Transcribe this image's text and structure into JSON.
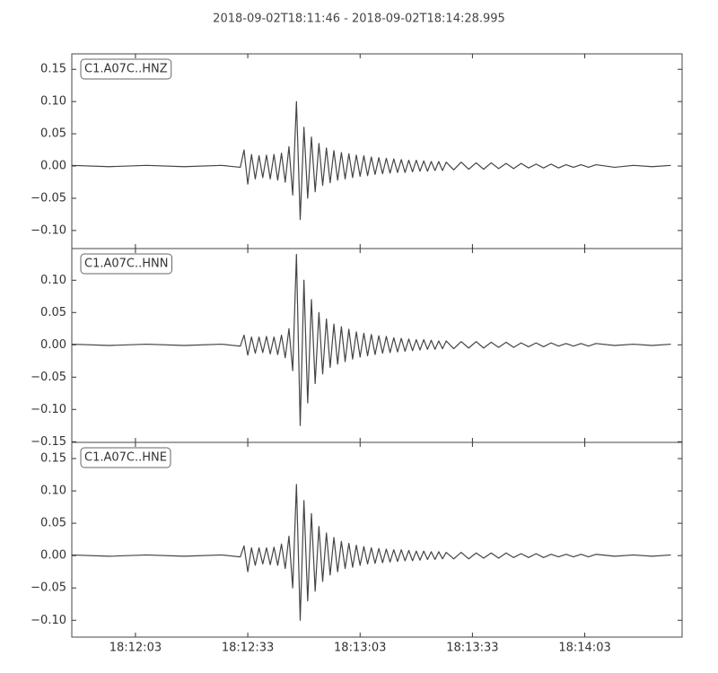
{
  "chart_data": [
    {
      "type": "line",
      "title": "2018-09-02T18:11:46  -  2018-09-02T18:14:28.995",
      "x": [
        0,
        10,
        20,
        30,
        40,
        45,
        46,
        47,
        48,
        49,
        50,
        51,
        52,
        53,
        54,
        55,
        56,
        57,
        58,
        59,
        60,
        61,
        62,
        63,
        64,
        65,
        66,
        67,
        68,
        69,
        70,
        71,
        72,
        73,
        74,
        75,
        76,
        77,
        78,
        79,
        80,
        81,
        82,
        83,
        84,
        85,
        86,
        87,
        88,
        89,
        90,
        91,
        92,
        93,
        94,
        95,
        96,
        97,
        98,
        99,
        100,
        102,
        104,
        106,
        108,
        110,
        112,
        114,
        116,
        118,
        120,
        122,
        124,
        126,
        128,
        130,
        132,
        134,
        136,
        138,
        140,
        145,
        150,
        155,
        160
      ],
      "series": [
        {
          "name": "C1.A07C..HNZ",
          "color": "#444444",
          "values": [
            0.001,
            -0.001,
            0.001,
            -0.001,
            0.001,
            -0.002,
            0.025,
            -0.028,
            0.018,
            -0.02,
            0.016,
            -0.018,
            0.017,
            -0.02,
            0.018,
            -0.022,
            0.02,
            -0.025,
            0.03,
            -0.045,
            0.1,
            -0.083,
            0.06,
            -0.05,
            0.045,
            -0.04,
            0.035,
            -0.03,
            0.028,
            -0.026,
            0.024,
            -0.022,
            0.021,
            -0.02,
            0.019,
            -0.018,
            0.017,
            -0.016,
            0.016,
            -0.015,
            0.014,
            -0.013,
            0.013,
            -0.012,
            0.012,
            -0.011,
            0.011,
            -0.01,
            0.01,
            -0.01,
            0.009,
            -0.009,
            0.009,
            -0.008,
            0.008,
            -0.008,
            0.007,
            -0.007,
            0.007,
            -0.007,
            0.006,
            -0.006,
            0.006,
            -0.005,
            0.005,
            -0.005,
            0.005,
            -0.004,
            0.004,
            -0.004,
            0.004,
            -0.003,
            0.003,
            -0.003,
            0.003,
            -0.003,
            0.002,
            -0.002,
            0.002,
            -0.002,
            0.002,
            -0.002,
            0.001,
            -0.001,
            0.001
          ]
        }
      ],
      "xlim": [
        0,
        162.995
      ],
      "ylim": [
        -0.128,
        0.174
      ],
      "yticks": [
        {
          "value": -0.1,
          "label": "−0.10"
        },
        {
          "value": -0.05,
          "label": "−0.05"
        },
        {
          "value": 0,
          "label": "0.00"
        },
        {
          "value": 0.05,
          "label": "0.05"
        },
        {
          "value": 0.1,
          "label": "0.10"
        },
        {
          "value": 0.15,
          "label": "0.15"
        }
      ]
    },
    {
      "type": "line",
      "x": [
        0,
        10,
        20,
        30,
        40,
        45,
        46,
        47,
        48,
        49,
        50,
        51,
        52,
        53,
        54,
        55,
        56,
        57,
        58,
        59,
        60,
        61,
        62,
        63,
        64,
        65,
        66,
        67,
        68,
        69,
        70,
        71,
        72,
        73,
        74,
        75,
        76,
        77,
        78,
        79,
        80,
        81,
        82,
        83,
        84,
        85,
        86,
        87,
        88,
        89,
        90,
        91,
        92,
        93,
        94,
        95,
        96,
        97,
        98,
        99,
        100,
        102,
        104,
        106,
        108,
        110,
        112,
        114,
        116,
        118,
        120,
        122,
        124,
        126,
        128,
        130,
        132,
        134,
        136,
        138,
        140,
        145,
        150,
        155,
        160
      ],
      "series": [
        {
          "name": "C1.A07C..HNN",
          "color": "#444444",
          "values": [
            0.001,
            -0.001,
            0.001,
            -0.001,
            0.001,
            -0.002,
            0.015,
            -0.016,
            0.012,
            -0.013,
            0.012,
            -0.012,
            0.013,
            -0.014,
            0.012,
            -0.015,
            0.015,
            -0.02,
            0.025,
            -0.04,
            0.14,
            -0.125,
            0.1,
            -0.09,
            0.07,
            -0.06,
            0.05,
            -0.045,
            0.04,
            -0.035,
            0.032,
            -0.03,
            0.028,
            -0.026,
            0.024,
            -0.022,
            0.02,
            -0.019,
            0.018,
            -0.017,
            0.016,
            -0.015,
            0.014,
            -0.013,
            0.013,
            -0.012,
            0.011,
            -0.011,
            0.01,
            -0.01,
            0.009,
            -0.009,
            0.008,
            -0.008,
            0.008,
            -0.007,
            0.007,
            -0.007,
            0.006,
            -0.006,
            0.006,
            -0.006,
            0.005,
            -0.005,
            0.005,
            -0.005,
            0.004,
            -0.004,
            0.004,
            -0.004,
            0.003,
            -0.003,
            0.003,
            -0.003,
            0.003,
            -0.002,
            0.002,
            -0.002,
            0.002,
            -0.002,
            0.002,
            -0.001,
            0.001,
            -0.001,
            0.001
          ]
        }
      ],
      "xlim": [
        0,
        162.995
      ],
      "ylim": [
        -0.151,
        0.149
      ],
      "yticks": [
        {
          "value": -0.15,
          "label": "−0.15"
        },
        {
          "value": -0.1,
          "label": "−0.10"
        },
        {
          "value": -0.05,
          "label": "−0.05"
        },
        {
          "value": 0,
          "label": "0.00"
        },
        {
          "value": 0.05,
          "label": "0.05"
        },
        {
          "value": 0.1,
          "label": "0.10"
        }
      ]
    },
    {
      "type": "line",
      "x": [
        0,
        10,
        20,
        30,
        40,
        45,
        46,
        47,
        48,
        49,
        50,
        51,
        52,
        53,
        54,
        55,
        56,
        57,
        58,
        59,
        60,
        61,
        62,
        63,
        64,
        65,
        66,
        67,
        68,
        69,
        70,
        71,
        72,
        73,
        74,
        75,
        76,
        77,
        78,
        79,
        80,
        81,
        82,
        83,
        84,
        85,
        86,
        87,
        88,
        89,
        90,
        91,
        92,
        93,
        94,
        95,
        96,
        97,
        98,
        99,
        100,
        102,
        104,
        106,
        108,
        110,
        112,
        114,
        116,
        118,
        120,
        122,
        124,
        126,
        128,
        130,
        132,
        134,
        136,
        138,
        140,
        145,
        150,
        155,
        160
      ],
      "series": [
        {
          "name": "C1.A07C..HNE",
          "color": "#444444",
          "values": [
            0.001,
            -0.001,
            0.001,
            -0.001,
            0.001,
            -0.002,
            0.015,
            -0.025,
            0.012,
            -0.015,
            0.012,
            -0.013,
            0.012,
            -0.014,
            0.013,
            -0.015,
            0.018,
            -0.02,
            0.03,
            -0.05,
            0.11,
            -0.1,
            0.085,
            -0.07,
            0.065,
            -0.055,
            0.045,
            -0.04,
            0.035,
            -0.03,
            0.028,
            -0.025,
            0.022,
            -0.02,
            0.019,
            -0.018,
            0.016,
            -0.015,
            0.014,
            -0.013,
            0.012,
            -0.012,
            0.011,
            -0.011,
            0.01,
            -0.01,
            0.009,
            -0.009,
            0.009,
            -0.008,
            0.008,
            -0.008,
            0.007,
            -0.007,
            0.007,
            -0.006,
            0.006,
            -0.006,
            0.006,
            -0.005,
            0.005,
            -0.005,
            0.005,
            -0.005,
            0.004,
            -0.004,
            0.004,
            -0.004,
            0.004,
            -0.003,
            0.003,
            -0.003,
            0.003,
            -0.003,
            0.002,
            -0.002,
            0.002,
            -0.002,
            0.002,
            -0.002,
            0.002,
            -0.001,
            0.001,
            -0.001,
            0.001
          ]
        }
      ],
      "xlim": [
        0,
        162.995
      ],
      "ylim": [
        -0.126,
        0.175
      ],
      "yticks": [
        {
          "value": -0.1,
          "label": "−0.10"
        },
        {
          "value": -0.05,
          "label": "−0.05"
        },
        {
          "value": 0,
          "label": "0.00"
        },
        {
          "value": 0.05,
          "label": "0.05"
        },
        {
          "value": 0.1,
          "label": "0.10"
        },
        {
          "value": 0.15,
          "label": "0.15"
        }
      ],
      "xticks": [
        {
          "value": 17,
          "label": "18:12:03"
        },
        {
          "value": 47,
          "label": "18:12:33"
        },
        {
          "value": 77,
          "label": "18:13:03"
        },
        {
          "value": 107,
          "label": "18:13:33"
        },
        {
          "value": 137,
          "label": "18:14:03"
        }
      ]
    }
  ]
}
